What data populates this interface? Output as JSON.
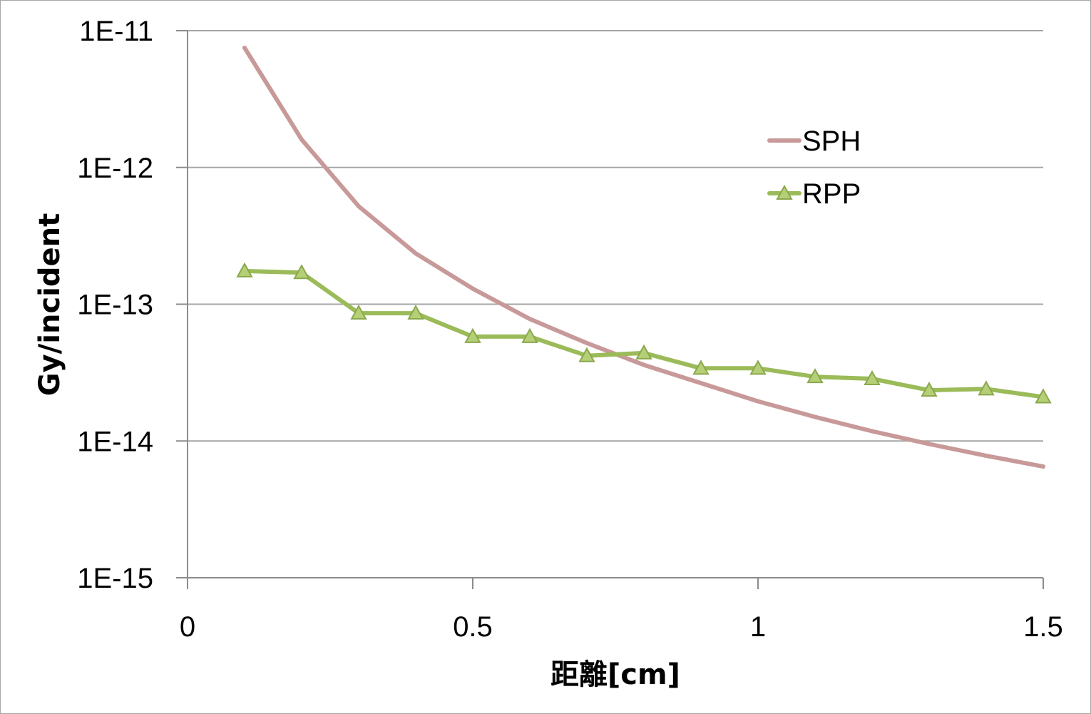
{
  "chart_data": {
    "type": "line",
    "title": "",
    "xlabel": "距離[cm]",
    "ylabel": "Gy/incident",
    "xlim": [
      0,
      1.5
    ],
    "ylim": [
      1e-15,
      1e-11
    ],
    "yscale": "log",
    "grid": "horizontal",
    "legend_position": "top-right",
    "x_ticks": [
      "0",
      "0.5",
      "1",
      "1.5"
    ],
    "x_tick_values": [
      0,
      0.5,
      1,
      1.5
    ],
    "y_ticks": [
      "1E-11",
      "1E-12",
      "1E-13",
      "1E-14",
      "1E-15"
    ],
    "y_tick_values": [
      1e-11,
      1e-12,
      1e-13,
      1e-14,
      1e-15
    ],
    "x": [
      0.1,
      0.2,
      0.3,
      0.4,
      0.5,
      0.6,
      0.7,
      0.8,
      0.9,
      1.0,
      1.1,
      1.2,
      1.3,
      1.4,
      1.5
    ],
    "series": [
      {
        "name": "SPH",
        "color": "#c89999",
        "marker": "none",
        "values": [
          7.5e-12,
          1.6e-12,
          5.2e-13,
          2.35e-13,
          1.3e-13,
          7.8e-14,
          5.2e-14,
          3.6e-14,
          2.65e-14,
          1.95e-14,
          1.5e-14,
          1.18e-14,
          9.5e-15,
          7.8e-15,
          6.5e-15
        ]
      },
      {
        "name": "RPP",
        "color": "#9bbb59",
        "marker": "triangle",
        "values": [
          1.75e-13,
          1.7e-13,
          8.6e-14,
          8.6e-14,
          5.8e-14,
          5.8e-14,
          4.2e-14,
          4.4e-14,
          3.4e-14,
          3.4e-14,
          2.95e-14,
          2.85e-14,
          2.35e-14,
          2.4e-14,
          2.1e-14
        ]
      }
    ]
  }
}
